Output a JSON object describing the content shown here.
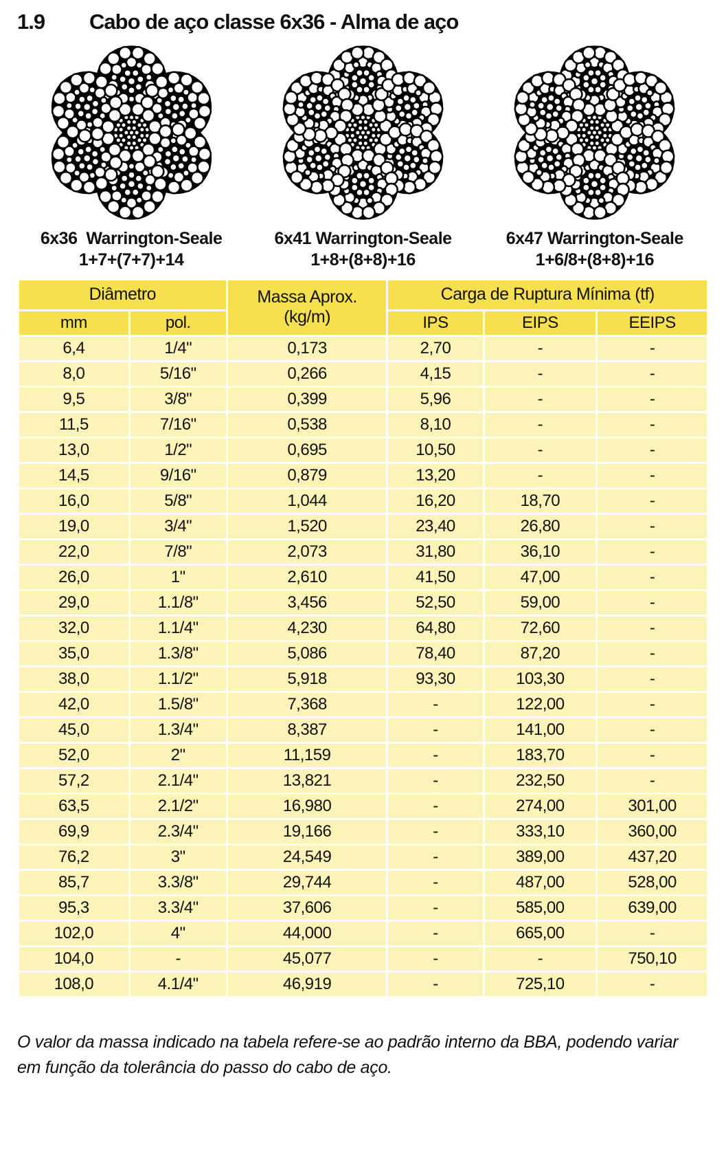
{
  "title": {
    "number": "1.9",
    "text": "Cabo de aço classe 6x36 - Alma de aço"
  },
  "diagrams": [
    {
      "label": "6x36  Warrington-Seale",
      "formula": "1+7+(7+7)+14"
    },
    {
      "label": "6x41 Warrington-Seale",
      "formula": "1+8+(8+8)+16"
    },
    {
      "label": "6x47 Warrington-Seale",
      "formula": "1+6/8+(8+8)+16"
    }
  ],
  "table": {
    "header": {
      "diametro": "Diâmetro",
      "mm": "mm",
      "pol": "pol.",
      "massa_line1": "Massa Aprox.",
      "massa_line2": "(kg/m)",
      "carga": "Carga de Ruptura Mínima (tf)",
      "ips": "IPS",
      "eips": "EIPS",
      "eeips": "EEIPS"
    },
    "rows": [
      [
        "6,4",
        "1/4\"",
        "0,173",
        "2,70",
        "-",
        "-"
      ],
      [
        "8,0",
        "5/16\"",
        "0,266",
        "4,15",
        "-",
        "-"
      ],
      [
        "9,5",
        "3/8\"",
        "0,399",
        "5,96",
        "-",
        "-"
      ],
      [
        "11,5",
        "7/16\"",
        "0,538",
        "8,10",
        "-",
        "-"
      ],
      [
        "13,0",
        "1/2\"",
        "0,695",
        "10,50",
        "-",
        "-"
      ],
      [
        "14,5",
        "9/16\"",
        "0,879",
        "13,20",
        "-",
        "-"
      ],
      [
        "16,0",
        "5/8\"",
        "1,044",
        "16,20",
        "18,70",
        "-"
      ],
      [
        "19,0",
        "3/4\"",
        "1,520",
        "23,40",
        "26,80",
        "-"
      ],
      [
        "22,0",
        "7/8\"",
        "2,073",
        "31,80",
        "36,10",
        "-"
      ],
      [
        "26,0",
        "1\"",
        "2,610",
        "41,50",
        "47,00",
        "-"
      ],
      [
        "29,0",
        "1.1/8\"",
        "3,456",
        "52,50",
        "59,00",
        "-"
      ],
      [
        "32,0",
        "1.1/4\"",
        "4,230",
        "64,80",
        "72,60",
        "-"
      ],
      [
        "35,0",
        "1.3/8\"",
        "5,086",
        "78,40",
        "87,20",
        "-"
      ],
      [
        "38,0",
        "1.1/2\"",
        "5,918",
        "93,30",
        "103,30",
        "-"
      ],
      [
        "42,0",
        "1.5/8\"",
        "7,368",
        "-",
        "122,00",
        "-"
      ],
      [
        "45,0",
        "1.3/4\"",
        "8,387",
        "-",
        "141,00",
        "-"
      ],
      [
        "52,0",
        "2\"",
        "11,159",
        "-",
        "183,70",
        "-"
      ],
      [
        "57,2",
        "2.1/4\"",
        "13,821",
        "-",
        "232,50",
        "-"
      ],
      [
        "63,5",
        "2.1/2\"",
        "16,980",
        "-",
        "274,00",
        "301,00"
      ],
      [
        "69,9",
        "2.3/4\"",
        "19,166",
        "-",
        "333,10",
        "360,00"
      ],
      [
        "76,2",
        "3\"",
        "24,549",
        "-",
        "389,00",
        "437,20"
      ],
      [
        "85,7",
        "3.3/8\"",
        "29,744",
        "-",
        "487,00",
        "528,00"
      ],
      [
        "95,3",
        "3.3/4\"",
        "37,606",
        "-",
        "585,00",
        "639,00"
      ],
      [
        "102,0",
        "4\"",
        "44,000",
        "-",
        "665,00",
        "-"
      ],
      [
        "104,0",
        "-",
        "45,077",
        "-",
        "-",
        "750,10"
      ],
      [
        "108,0",
        "4.1/4\"",
        "46,919",
        "-",
        "725,10",
        "-"
      ]
    ]
  },
  "footnote": "O valor da massa indicado na tabela refere-se ao padrão interno da BBA, podendo variar em função da tolerância do passo do cabo de aço.",
  "colors": {
    "header_yellow": "#F7E04E",
    "row_cream": "#FCF3B9",
    "text": "#111111"
  }
}
